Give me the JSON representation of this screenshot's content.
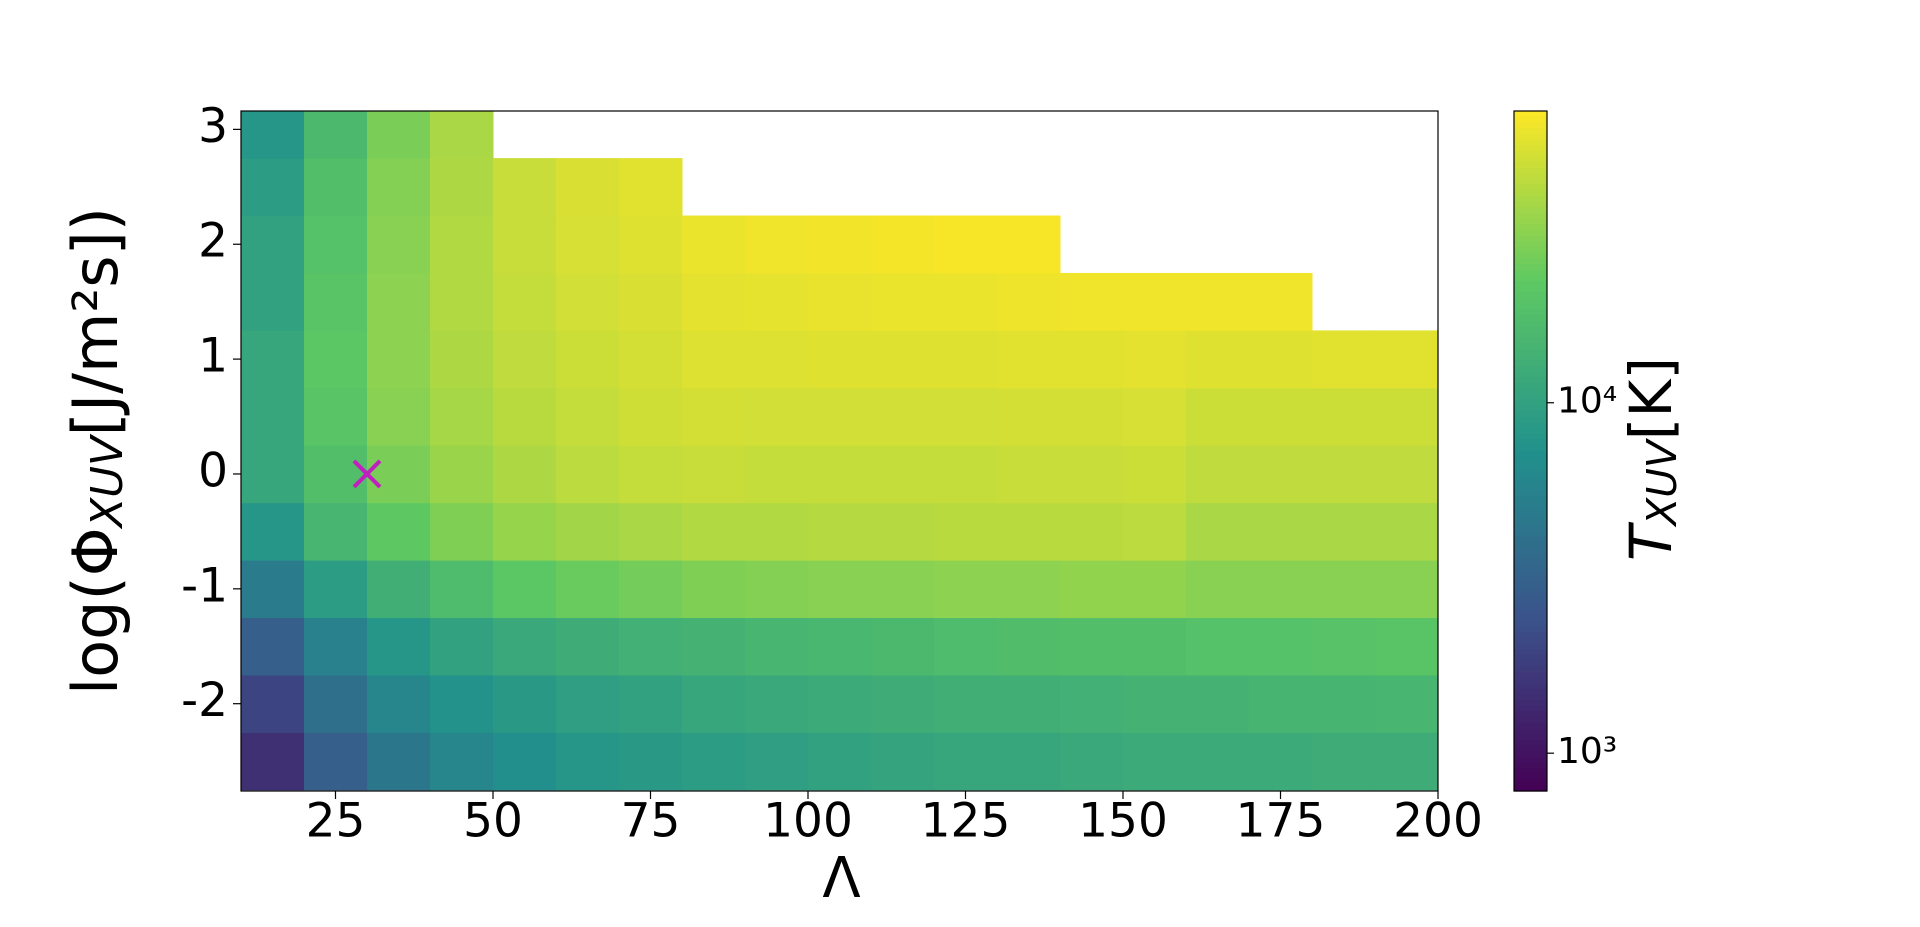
{
  "chart_data": {
    "type": "heatmap",
    "xlabel": "Λ",
    "ylabel": {
      "base": "log(Φ",
      "sub": "XUV",
      "rest": "[J/m²s])"
    },
    "colorbar_label": {
      "base": "T",
      "sub": "XUV",
      "rest": "[K]"
    },
    "x": [
      15,
      25,
      35,
      45,
      55,
      65,
      75,
      85,
      95,
      105,
      115,
      125,
      135,
      145,
      155,
      165,
      175,
      185,
      195
    ],
    "y": [
      -2.5,
      -2,
      -1.5,
      -1,
      -0.5,
      0,
      0.5,
      1,
      1.5,
      2,
      2.5,
      3
    ],
    "z": [
      [
        1500,
        3000,
        4500,
        6000,
        7000,
        8000,
        8500,
        9000,
        9500,
        10000,
        10500,
        11000,
        11000,
        11500,
        12000,
        12000,
        12000,
        12500,
        12500
      ],
      [
        2000,
        4000,
        6000,
        7500,
        8500,
        9500,
        10000,
        11000,
        11500,
        12000,
        12500,
        13000,
        13000,
        13500,
        14000,
        14000,
        14500,
        14500,
        15000
      ],
      [
        3000,
        5500,
        8000,
        10000,
        11500,
        12500,
        13500,
        14000,
        15000,
        15500,
        16000,
        17000,
        17500,
        18000,
        18000,
        19000,
        19000,
        19500,
        20000
      ],
      [
        5000,
        9000,
        13000,
        17000,
        21000,
        24000,
        26000,
        28000,
        29000,
        30000,
        30000,
        31000,
        31000,
        32000,
        32000,
        30000,
        30000,
        30000,
        30000
      ],
      [
        8000,
        15000,
        22000,
        28000,
        33000,
        36000,
        38000,
        40000,
        40000,
        41000,
        41000,
        42000,
        42000,
        42000,
        43000,
        38000,
        38000,
        38000,
        38000
      ],
      [
        11000,
        18000,
        27000,
        34000,
        39000,
        43000,
        46000,
        47000,
        46000,
        46000,
        46000,
        46000,
        47000,
        47000,
        48000,
        44000,
        44000,
        44000,
        44000
      ],
      [
        11000,
        20000,
        30000,
        37000,
        42000,
        46000,
        49000,
        51000,
        50000,
        50000,
        50000,
        50000,
        51000,
        51000,
        52000,
        48000,
        48000,
        48000,
        48000
      ],
      [
        11000,
        21000,
        31000,
        39000,
        44000,
        48000,
        51000,
        54000,
        54000,
        55000,
        55000,
        55000,
        56000,
        56000,
        57000,
        55000,
        55000,
        56000,
        56000
      ],
      [
        10000,
        20000,
        31000,
        40000,
        46000,
        50000,
        53000,
        57000,
        58000,
        59000,
        60000,
        60000,
        61000,
        62000,
        62000,
        62000,
        62000,
        null,
        null
      ],
      [
        10000,
        19000,
        30000,
        40000,
        47000,
        52000,
        55000,
        60000,
        62000,
        63000,
        64000,
        65000,
        65000,
        null,
        null,
        null,
        null,
        null,
        null
      ],
      [
        9000,
        18000,
        29000,
        39000,
        47000,
        53000,
        56000,
        null,
        null,
        null,
        null,
        null,
        null,
        null,
        null,
        null,
        null,
        null,
        null
      ],
      [
        8000,
        16000,
        27000,
        38000,
        null,
        null,
        null,
        null,
        null,
        null,
        null,
        null,
        null,
        null,
        null,
        null,
        null,
        null,
        null
      ]
    ],
    "xlim": [
      10,
      200
    ],
    "xticks": [
      25,
      50,
      75,
      100,
      125,
      150,
      175,
      200
    ],
    "ylim": [
      -2.76,
      3.16
    ],
    "yticks": [
      -2,
      -1,
      0,
      1,
      2,
      3
    ],
    "clim": [
      780,
      68000
    ],
    "colorscale": "viridis",
    "color_log": true,
    "cticks": [
      {
        "value": 1000,
        "label": "10³"
      },
      {
        "value": 10000,
        "label": "10⁴"
      }
    ],
    "marker": {
      "x": 30,
      "y": 0,
      "color": "#c020c0"
    }
  }
}
